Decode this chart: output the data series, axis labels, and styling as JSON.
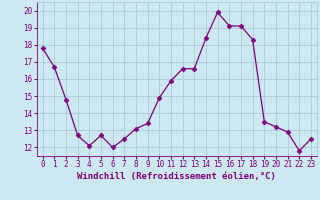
{
  "x": [
    0,
    1,
    2,
    3,
    4,
    5,
    6,
    7,
    8,
    9,
    10,
    11,
    12,
    13,
    14,
    15,
    16,
    17,
    18,
    19,
    20,
    21,
    22,
    23
  ],
  "y": [
    17.8,
    16.7,
    14.8,
    12.7,
    12.1,
    12.7,
    12.0,
    12.5,
    13.1,
    13.4,
    14.9,
    15.9,
    16.6,
    16.6,
    18.4,
    19.9,
    19.1,
    19.1,
    18.3,
    13.5,
    13.2,
    12.9,
    11.8,
    12.5
  ],
  "line_color": "#800080",
  "marker": "D",
  "marker_size": 2.5,
  "bg_color": "#cce8f0",
  "grid_color": "#aaccd8",
  "xlabel": "Windchill (Refroidissement éolien,°C)",
  "ylim": [
    11.5,
    20.5
  ],
  "xlim": [
    -0.5,
    23.5
  ],
  "yticks": [
    12,
    13,
    14,
    15,
    16,
    17,
    18,
    19,
    20
  ],
  "xticks": [
    0,
    1,
    2,
    3,
    4,
    5,
    6,
    7,
    8,
    9,
    10,
    11,
    12,
    13,
    14,
    15,
    16,
    17,
    18,
    19,
    20,
    21,
    22,
    23
  ],
  "tick_color": "#800080",
  "label_color": "#800080",
  "label_fontsize": 6.5,
  "tick_fontsize": 5.5
}
